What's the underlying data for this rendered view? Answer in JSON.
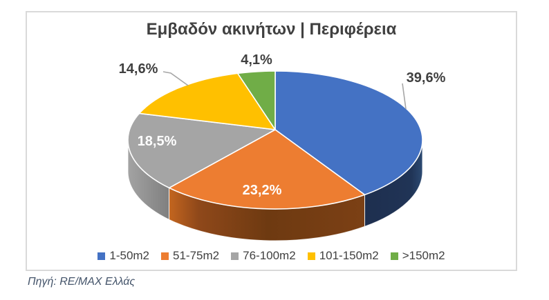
{
  "window": {
    "background": "#FFFFFF",
    "chart_border_color": "#D9D9D9"
  },
  "chart": {
    "title": "Εμβαδόν ακινήτων | Περιφέρεια",
    "title_color": "#404040",
    "label_color_outside": "#404040",
    "label_color_inside": "#FFFFFF",
    "leader_line_color": "#A6A6A6"
  },
  "chart_data": {
    "type": "pie",
    "style": "3d",
    "title": "Εμβαδόν ακινήτων | Περιφέρεια",
    "categories": [
      "1-50m2",
      "51-75m2",
      "76-100m2",
      "101-150m2",
      ">150m2"
    ],
    "values": [
      39.6,
      23.2,
      18.5,
      14.6,
      4.1
    ],
    "labels": [
      "39,6%",
      "23,2%",
      "18,5%",
      "14,6%",
      "4,1%"
    ],
    "colors": [
      "#4472C4",
      "#ED7D31",
      "#A5A5A5",
      "#FFC000",
      "#70AD47"
    ],
    "legend_position": "bottom",
    "start_angle_deg": -90,
    "direction": "clockwise",
    "units": "percent"
  },
  "source": {
    "text": "Πηγή: RE/MAX Ελλάς",
    "color": "#44546A"
  }
}
